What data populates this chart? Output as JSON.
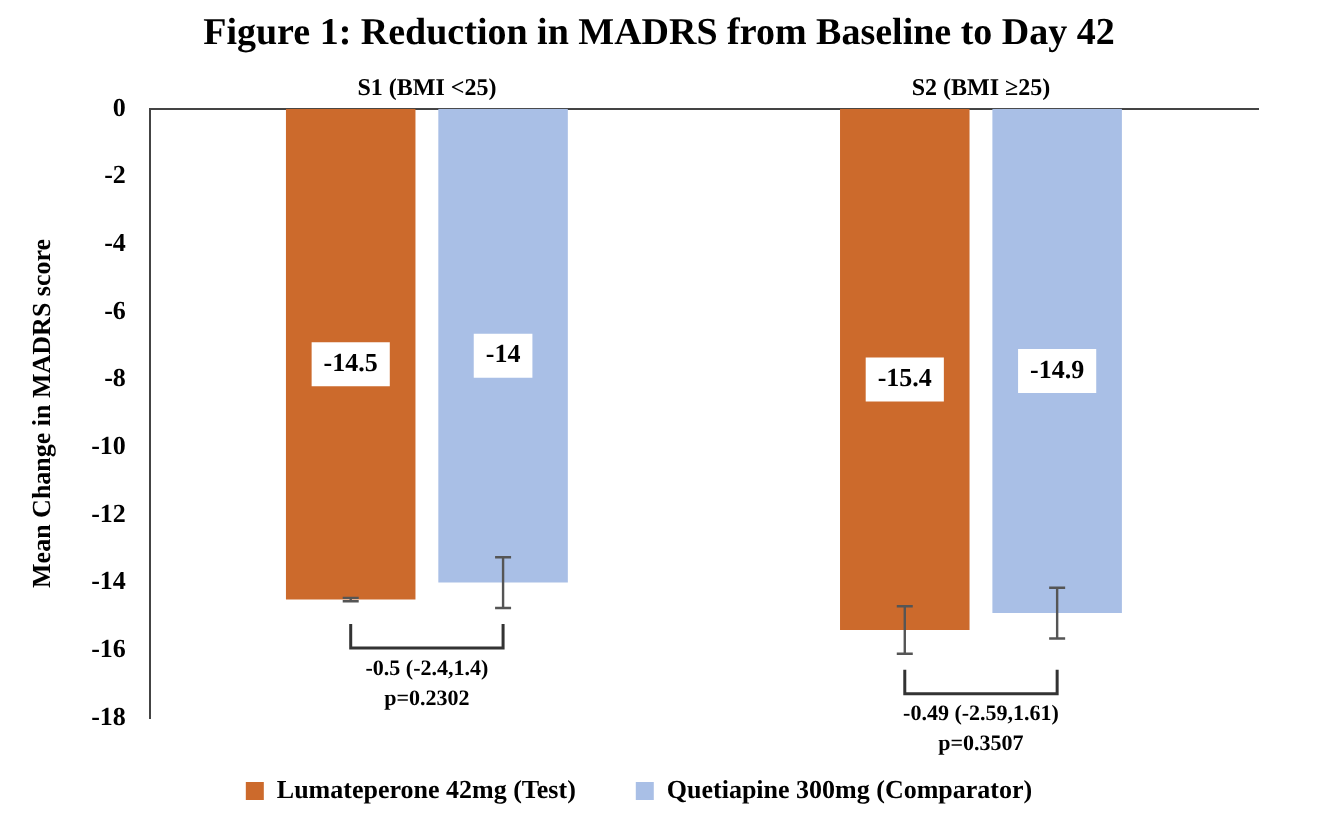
{
  "chart_data": {
    "type": "bar",
    "title": "Figure 1: Reduction in MADRS from Baseline to Day 42",
    "ylabel": "Mean Change in MADRS score",
    "categories": [
      "S1 (BMI <25)",
      "S2 (BMI ≥25)"
    ],
    "series": [
      {
        "name": "Lumateperone 42mg (Test)",
        "color": "#cc6a2c",
        "values": [
          -14.5,
          -15.4
        ],
        "errors": [
          0.05,
          0.7
        ]
      },
      {
        "name": "Quetiapine 300mg (Comparator)",
        "color": "#a9bfe6",
        "values": [
          -14,
          -14.9
        ],
        "errors": [
          0.75,
          0.75
        ]
      }
    ],
    "ylim": [
      -18,
      0
    ],
    "yticks": [
      0,
      -2,
      -4,
      -6,
      -8,
      -10,
      -12,
      -14,
      -16,
      -18
    ],
    "grid": false,
    "legend": "bottom",
    "data_labels": true,
    "annotations": [
      "-0.5 (-2.4,1.4)\np=0.2302",
      "-0.49 (-2.59,1.61)\np=0.3507"
    ]
  }
}
